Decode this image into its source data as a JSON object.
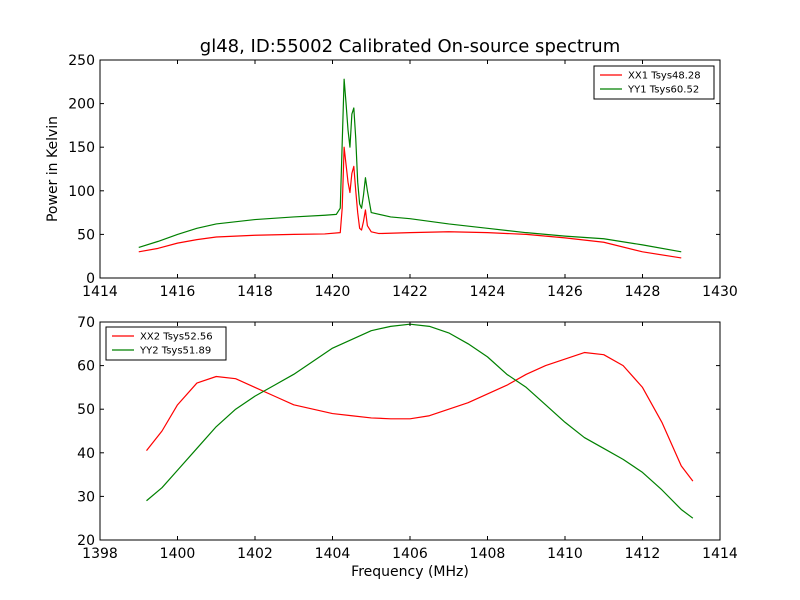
{
  "chart_data": [
    {
      "type": "line",
      "title": "gl48, ID:55002 Calibrated On-source spectrum",
      "ylabel": "Power in Kelvin",
      "xlabel": "",
      "xlim": [
        1414,
        1430
      ],
      "ylim": [
        0,
        250
      ],
      "xticks": [
        1414,
        1416,
        1418,
        1420,
        1422,
        1424,
        1426,
        1428,
        1430
      ],
      "yticks": [
        0,
        50,
        100,
        150,
        200,
        250
      ],
      "legend": "top-right",
      "series": [
        {
          "name": "XX1 Tsys48.28",
          "color": "#ff0000",
          "points": [
            [
              1415.0,
              30
            ],
            [
              1415.5,
              34
            ],
            [
              1416.0,
              40
            ],
            [
              1416.5,
              44
            ],
            [
              1417.0,
              47
            ],
            [
              1418.0,
              49
            ],
            [
              1419.0,
              50
            ],
            [
              1419.8,
              50.5
            ],
            [
              1420.2,
              52
            ],
            [
              1420.25,
              80
            ],
            [
              1420.3,
              150
            ],
            [
              1420.35,
              130
            ],
            [
              1420.4,
              110
            ],
            [
              1420.45,
              98
            ],
            [
              1420.5,
              120
            ],
            [
              1420.55,
              128
            ],
            [
              1420.6,
              100
            ],
            [
              1420.65,
              75
            ],
            [
              1420.7,
              57
            ],
            [
              1420.75,
              55
            ],
            [
              1420.8,
              65
            ],
            [
              1420.85,
              78
            ],
            [
              1420.9,
              60
            ],
            [
              1421.0,
              53
            ],
            [
              1421.2,
              51
            ],
            [
              1422.0,
              52
            ],
            [
              1423.0,
              53
            ],
            [
              1424.0,
              52
            ],
            [
              1425.0,
              50
            ],
            [
              1426.0,
              46
            ],
            [
              1427.0,
              41
            ],
            [
              1428.0,
              30
            ],
            [
              1429.0,
              23
            ]
          ]
        },
        {
          "name": "YY1 Tsys60.52",
          "color": "#008000",
          "points": [
            [
              1415.0,
              35
            ],
            [
              1415.5,
              42
            ],
            [
              1416.0,
              50
            ],
            [
              1416.5,
              57
            ],
            [
              1417.0,
              62
            ],
            [
              1418.0,
              67
            ],
            [
              1419.0,
              70
            ],
            [
              1419.8,
              72
            ],
            [
              1420.1,
              73
            ],
            [
              1420.2,
              80
            ],
            [
              1420.3,
              228
            ],
            [
              1420.35,
              200
            ],
            [
              1420.4,
              170
            ],
            [
              1420.45,
              150
            ],
            [
              1420.5,
              188
            ],
            [
              1420.55,
              195
            ],
            [
              1420.6,
              160
            ],
            [
              1420.65,
              110
            ],
            [
              1420.7,
              85
            ],
            [
              1420.75,
              80
            ],
            [
              1420.8,
              95
            ],
            [
              1420.85,
              115
            ],
            [
              1420.9,
              100
            ],
            [
              1421.0,
              75
            ],
            [
              1421.5,
              70
            ],
            [
              1422.0,
              68
            ],
            [
              1423.0,
              62
            ],
            [
              1424.0,
              57
            ],
            [
              1425.0,
              52
            ],
            [
              1426.0,
              48
            ],
            [
              1427.0,
              45
            ],
            [
              1428.0,
              38
            ],
            [
              1429.0,
              30
            ]
          ]
        }
      ]
    },
    {
      "type": "line",
      "title": "",
      "xlabel": "Frequency (MHz)",
      "ylabel": "",
      "xlim": [
        1398,
        1414
      ],
      "ylim": [
        20,
        70
      ],
      "xticks": [
        1398,
        1400,
        1402,
        1404,
        1406,
        1408,
        1410,
        1412,
        1414
      ],
      "yticks": [
        20,
        30,
        40,
        50,
        60,
        70
      ],
      "legend": "top-left",
      "series": [
        {
          "name": "XX2 Tsys52.56",
          "color": "#ff0000",
          "points": [
            [
              1399.2,
              40.5
            ],
            [
              1399.6,
              45
            ],
            [
              1400.0,
              51
            ],
            [
              1400.5,
              56
            ],
            [
              1401.0,
              57.5
            ],
            [
              1401.5,
              57
            ],
            [
              1402.0,
              55
            ],
            [
              1402.5,
              53
            ],
            [
              1403.0,
              51
            ],
            [
              1403.5,
              50
            ],
            [
              1404.0,
              49
            ],
            [
              1404.5,
              48.5
            ],
            [
              1405.0,
              48
            ],
            [
              1405.5,
              47.8
            ],
            [
              1406.0,
              47.8
            ],
            [
              1406.5,
              48.5
            ],
            [
              1407.0,
              50
            ],
            [
              1407.5,
              51.5
            ],
            [
              1408.0,
              53.5
            ],
            [
              1408.5,
              55.5
            ],
            [
              1409.0,
              58
            ],
            [
              1409.5,
              60
            ],
            [
              1410.0,
              61.5
            ],
            [
              1410.5,
              63
            ],
            [
              1411.0,
              62.5
            ],
            [
              1411.5,
              60
            ],
            [
              1412.0,
              55
            ],
            [
              1412.5,
              47
            ],
            [
              1413.0,
              37
            ],
            [
              1413.3,
              33.5
            ]
          ]
        },
        {
          "name": "YY2 Tsys51.89",
          "color": "#008000",
          "points": [
            [
              1399.2,
              29
            ],
            [
              1399.6,
              32
            ],
            [
              1400.0,
              36
            ],
            [
              1400.5,
              41
            ],
            [
              1401.0,
              46
            ],
            [
              1401.5,
              50
            ],
            [
              1402.0,
              53
            ],
            [
              1402.5,
              55.5
            ],
            [
              1403.0,
              58
            ],
            [
              1403.5,
              61
            ],
            [
              1404.0,
              64
            ],
            [
              1404.5,
              66
            ],
            [
              1405.0,
              68
            ],
            [
              1405.5,
              69
            ],
            [
              1406.0,
              69.5
            ],
            [
              1406.5,
              69
            ],
            [
              1407.0,
              67.5
            ],
            [
              1407.5,
              65
            ],
            [
              1408.0,
              62
            ],
            [
              1408.5,
              58
            ],
            [
              1409.0,
              55
            ],
            [
              1409.5,
              51
            ],
            [
              1410.0,
              47
            ],
            [
              1410.5,
              43.5
            ],
            [
              1411.0,
              41
            ],
            [
              1411.5,
              38.5
            ],
            [
              1412.0,
              35.5
            ],
            [
              1412.5,
              31.5
            ],
            [
              1413.0,
              27
            ],
            [
              1413.3,
              25
            ]
          ]
        }
      ]
    }
  ]
}
